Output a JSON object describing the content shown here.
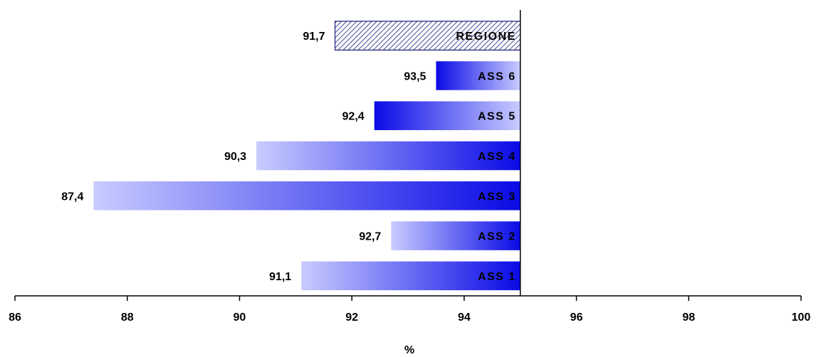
{
  "chart_data": {
    "type": "bar",
    "orientation": "horizontal",
    "categories": [
      "REGIONE",
      "ASS 6",
      "ASS 5",
      "ASS 4",
      "ASS 3",
      "ASS 2",
      "ASS 1"
    ],
    "values": [
      91.7,
      93.5,
      92.4,
      90.3,
      87.4,
      92.7,
      91.1
    ],
    "value_labels": [
      "91,7",
      "93,5",
      "92,4",
      "90,3",
      "87,4",
      "92,7",
      "91,1"
    ],
    "baseline": 95,
    "xlim": [
      86,
      100
    ],
    "xticks": [
      86,
      88,
      90,
      92,
      94,
      96,
      98,
      100
    ],
    "xlabel": "%",
    "ylabel": "",
    "title": "",
    "grid": false,
    "colors": {
      "gradient_light": "#c8ccff",
      "gradient_dark": "#0a0ae6",
      "hatch_line": "#1a1a7a",
      "hatch_fill": "#ffffff"
    },
    "gradient_direction": [
      "left-dark",
      "left-dark",
      "left-dark",
      "right-dark",
      "right-dark",
      "right-dark",
      "right-dark"
    ],
    "hatched": [
      true,
      false,
      false,
      false,
      false,
      false,
      false
    ]
  }
}
